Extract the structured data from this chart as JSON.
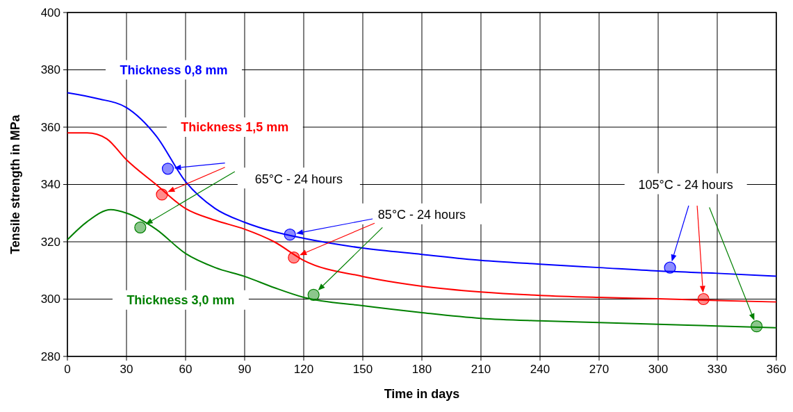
{
  "chart_data": {
    "type": "line",
    "xlabel": "Time in days",
    "ylabel": "Tensile strength in MPa",
    "xlim": [
      0,
      360
    ],
    "ylim": [
      280,
      400
    ],
    "xticks": [
      0,
      30,
      60,
      90,
      120,
      150,
      180,
      210,
      240,
      270,
      300,
      330,
      360
    ],
    "yticks": [
      280,
      300,
      320,
      340,
      360,
      380,
      400
    ],
    "grid": true,
    "line_style": "solid",
    "annotations": [
      "65°C - 24 hours",
      "85°C - 24 hours",
      "105°C - 24 hours"
    ],
    "series": [
      {
        "name": "Thickness 0,8 mm",
        "color": "#0000ff",
        "x": [
          0,
          15,
          30,
          45,
          60,
          75,
          90,
          105,
          120,
          150,
          180,
          210,
          240,
          270,
          300,
          330,
          360
        ],
        "values": [
          372,
          370,
          366.8,
          357,
          341,
          331.6,
          326.8,
          323.5,
          321.2,
          317.8,
          315.6,
          313.5,
          312.2,
          311,
          309.8,
          309,
          308
        ]
      },
      {
        "name": "Thickness 1,5 mm",
        "color": "#ff0000",
        "x": [
          0,
          10,
          15,
          20,
          30,
          45,
          60,
          75,
          90,
          105,
          120,
          150,
          180,
          210,
          240,
          270,
          300,
          330,
          360
        ],
        "values": [
          358,
          358,
          357.5,
          355.9,
          348.6,
          340,
          331.6,
          327.5,
          324.4,
          320,
          313.5,
          307.9,
          304.5,
          302.5,
          301.3,
          300.6,
          300.1,
          299.5,
          299
        ]
      },
      {
        "name": "Thickness 3,0 mm",
        "color": "#008000",
        "x": [
          0,
          10,
          22,
          30,
          45,
          60,
          75,
          90,
          105,
          120,
          150,
          180,
          210,
          240,
          270,
          300,
          330,
          360
        ],
        "values": [
          320.7,
          327,
          331.2,
          330,
          324.4,
          315.9,
          311,
          307.9,
          304,
          300.6,
          297.7,
          295.3,
          293.3,
          292.4,
          291.8,
          291.2,
          290.6,
          290
        ]
      },
      {
        "type": "scatter",
        "marker": "circle",
        "color": "#0000ff",
        "x": [
          51,
          113,
          306
        ],
        "values": [
          345.5,
          322.5,
          311
        ]
      },
      {
        "type": "scatter",
        "marker": "circle",
        "color": "#ff0000",
        "x": [
          48,
          115,
          323
        ],
        "values": [
          336.5,
          314.5,
          300
        ]
      },
      {
        "type": "scatter",
        "marker": "circle",
        "color": "#008000",
        "x": [
          37,
          125,
          350
        ],
        "values": [
          325,
          301.5,
          290.5
        ]
      }
    ]
  }
}
